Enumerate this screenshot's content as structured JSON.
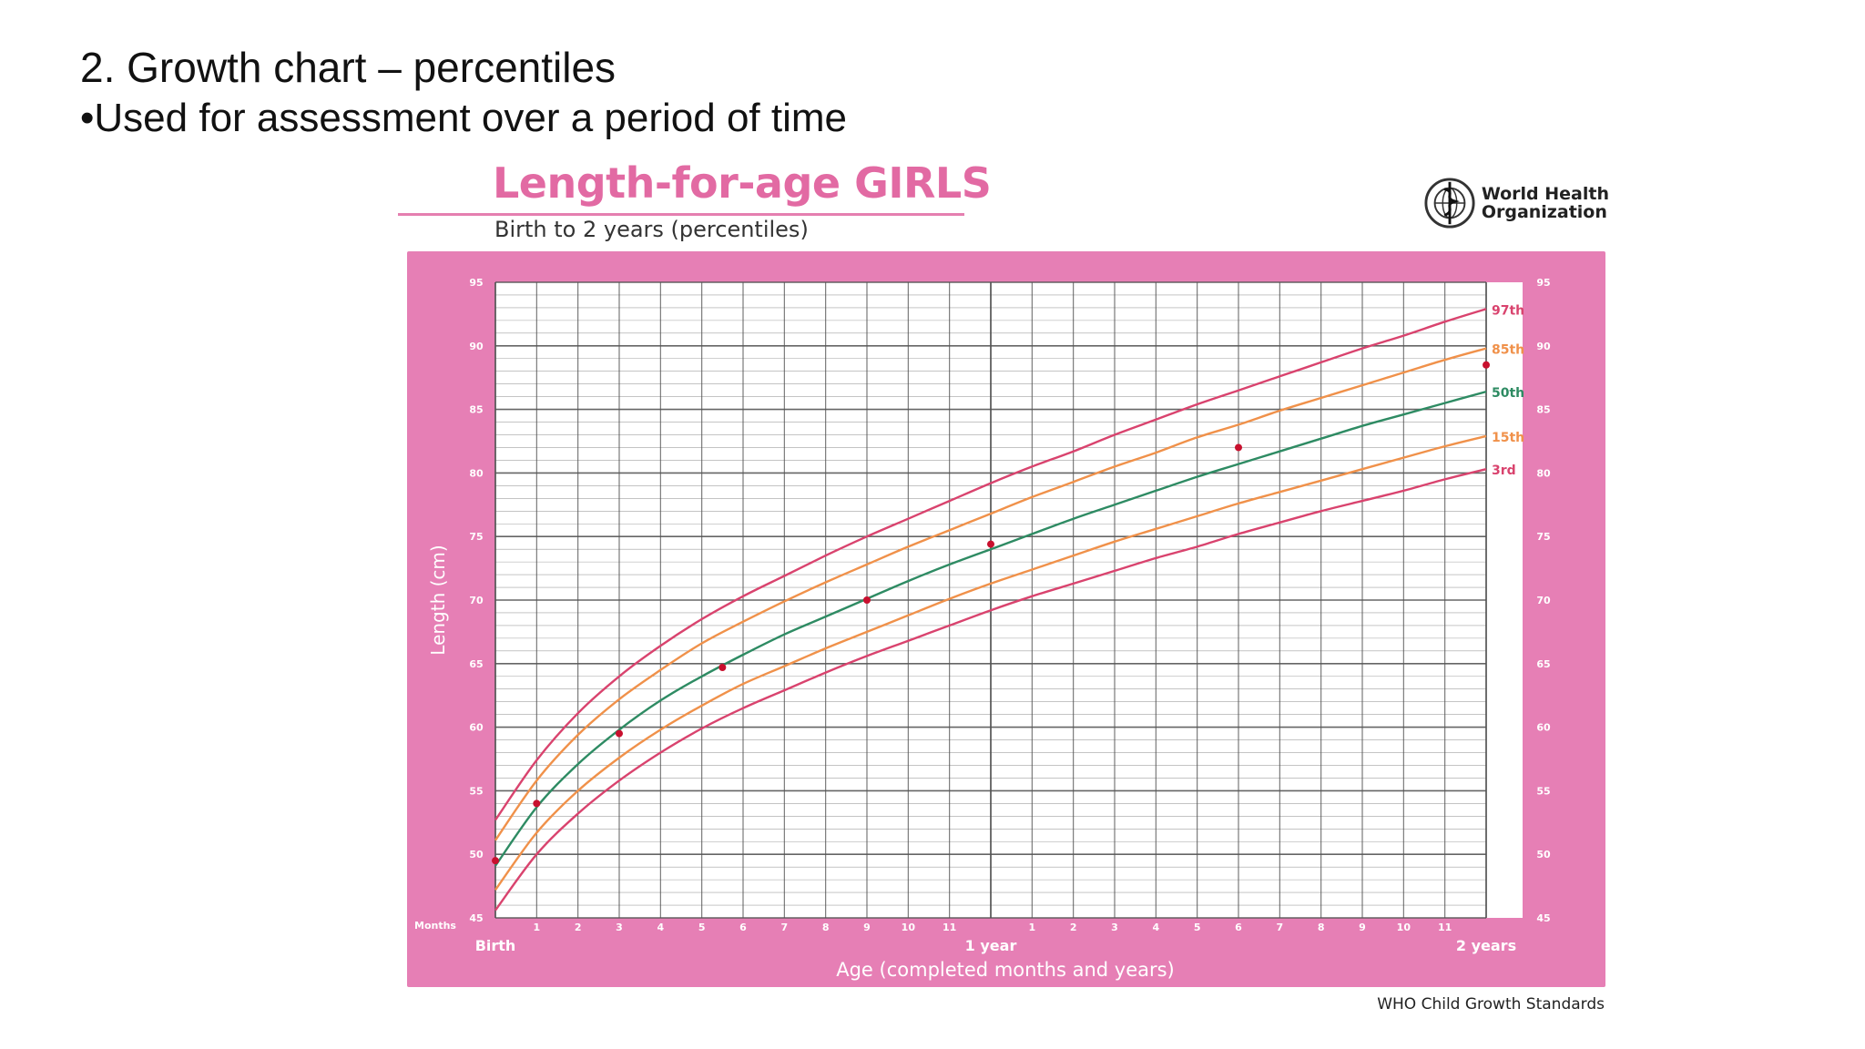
{
  "slide": {
    "heading": "2. Growth chart – percentiles",
    "bullet": "•Used for assessment over a period of time"
  },
  "who": {
    "line1": "World Health",
    "line2": "Organization"
  },
  "footer": "WHO Child Growth Standards",
  "colors": {
    "frame": "#e67fb5",
    "grid": "#555555",
    "curve97": "#d9436e",
    "curve85": "#f0914a",
    "curve50": "#2e8b63",
    "curve15": "#f0914a",
    "curve3": "#d9436e",
    "point": "#c8102e"
  },
  "chart_data": {
    "type": "line",
    "title": "Length-for-age GIRLS",
    "subtitle": "Birth to 2 years (percentiles)",
    "ylabel": "Length (cm)",
    "xlabel": "Age (completed months and years)",
    "xlim": [
      0,
      24
    ],
    "ylim": [
      45,
      95
    ],
    "y_ticks": [
      45,
      50,
      55,
      60,
      65,
      70,
      75,
      80,
      85,
      90,
      95
    ],
    "x_tick_labels": [
      {
        "x": 0,
        "label": "Birth"
      },
      {
        "x": 1,
        "label": "1"
      },
      {
        "x": 2,
        "label": "2"
      },
      {
        "x": 3,
        "label": "3"
      },
      {
        "x": 4,
        "label": "4"
      },
      {
        "x": 5,
        "label": "5"
      },
      {
        "x": 6,
        "label": "6"
      },
      {
        "x": 7,
        "label": "7"
      },
      {
        "x": 8,
        "label": "8"
      },
      {
        "x": 9,
        "label": "9"
      },
      {
        "x": 10,
        "label": "10"
      },
      {
        "x": 11,
        "label": "11"
      },
      {
        "x": 12,
        "label": "1 year"
      },
      {
        "x": 13,
        "label": "1"
      },
      {
        "x": 14,
        "label": "2"
      },
      {
        "x": 15,
        "label": "3"
      },
      {
        "x": 16,
        "label": "4"
      },
      {
        "x": 17,
        "label": "5"
      },
      {
        "x": 18,
        "label": "6"
      },
      {
        "x": 19,
        "label": "7"
      },
      {
        "x": 20,
        "label": "8"
      },
      {
        "x": 21,
        "label": "9"
      },
      {
        "x": 22,
        "label": "10"
      },
      {
        "x": 23,
        "label": "11"
      },
      {
        "x": 24,
        "label": "2 years"
      }
    ],
    "months_label": "Months",
    "x": [
      0,
      1,
      2,
      3,
      4,
      5,
      6,
      7,
      8,
      9,
      10,
      11,
      12,
      13,
      14,
      15,
      16,
      17,
      18,
      19,
      20,
      21,
      22,
      23,
      24
    ],
    "series": [
      {
        "name": "97th",
        "values": [
          52.7,
          57.4,
          61.1,
          64.0,
          66.4,
          68.5,
          70.3,
          71.9,
          73.5,
          75.0,
          76.4,
          77.8,
          79.2,
          80.5,
          81.7,
          83.0,
          84.2,
          85.4,
          86.5,
          87.6,
          88.7,
          89.8,
          90.8,
          91.9,
          92.9
        ]
      },
      {
        "name": "85th",
        "values": [
          51.1,
          55.8,
          59.4,
          62.2,
          64.5,
          66.6,
          68.3,
          69.9,
          71.4,
          72.8,
          74.2,
          75.5,
          76.8,
          78.1,
          79.3,
          80.5,
          81.6,
          82.8,
          83.8,
          84.9,
          85.9,
          86.9,
          87.9,
          88.9,
          89.8
        ]
      },
      {
        "name": "50th",
        "values": [
          49.1,
          53.7,
          57.1,
          59.8,
          62.1,
          64.0,
          65.7,
          67.3,
          68.7,
          70.1,
          71.5,
          72.8,
          74.0,
          75.2,
          76.4,
          77.5,
          78.6,
          79.7,
          80.7,
          81.7,
          82.7,
          83.7,
          84.6,
          85.5,
          86.4
        ]
      },
      {
        "name": "15th",
        "values": [
          47.2,
          51.7,
          55.0,
          57.6,
          59.8,
          61.7,
          63.4,
          64.8,
          66.2,
          67.5,
          68.8,
          70.1,
          71.3,
          72.4,
          73.5,
          74.6,
          75.6,
          76.6,
          77.6,
          78.5,
          79.4,
          80.3,
          81.2,
          82.1,
          82.9
        ]
      },
      {
        "name": "3rd",
        "values": [
          45.6,
          50.0,
          53.2,
          55.8,
          58.0,
          59.9,
          61.5,
          62.9,
          64.3,
          65.6,
          66.8,
          68.0,
          69.2,
          70.3,
          71.3,
          72.3,
          73.3,
          74.2,
          75.2,
          76.1,
          77.0,
          77.8,
          78.6,
          79.5,
          80.3
        ]
      }
    ],
    "measurements": [
      {
        "x": 0,
        "y": 49.5
      },
      {
        "x": 1,
        "y": 54
      },
      {
        "x": 3,
        "y": 59.5
      },
      {
        "x": 5.5,
        "y": 64.7
      },
      {
        "x": 9,
        "y": 70
      },
      {
        "x": 12,
        "y": 74.4
      },
      {
        "x": 18,
        "y": 82
      },
      {
        "x": 24,
        "y": 88.5
      }
    ]
  }
}
